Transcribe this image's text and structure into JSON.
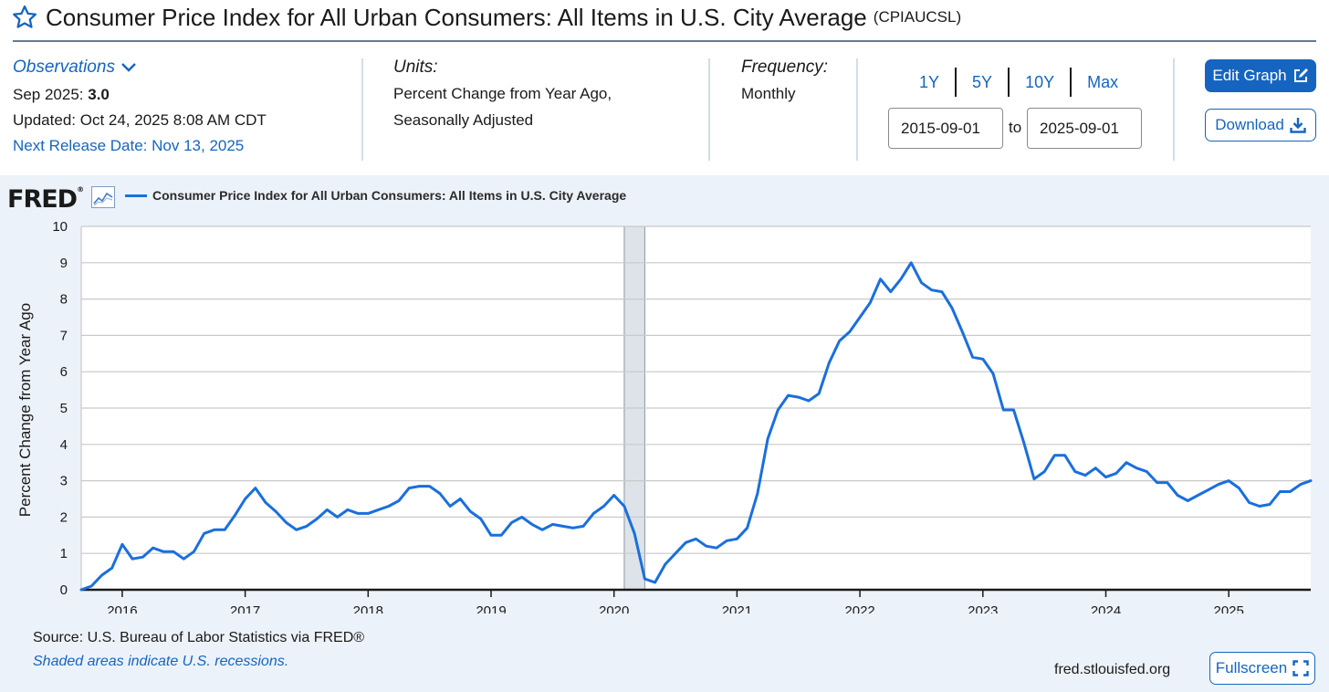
{
  "header": {
    "title": "Consumer Price Index for All Urban Consumers: All Items in U.S. City Average",
    "series_code": "(CPIAUCSL)"
  },
  "observations": {
    "label": "Observations",
    "period": "Sep 2025:",
    "value": "3.0",
    "updated": "Updated: Oct 24, 2025 8:08 AM CDT",
    "next_release": "Next Release Date: Nov 13, 2025"
  },
  "units": {
    "label": "Units:",
    "line1": "Percent Change from Year Ago,",
    "line2": "Seasonally Adjusted"
  },
  "frequency": {
    "label": "Frequency:",
    "value": "Monthly"
  },
  "range_buttons": [
    "1Y",
    "5Y",
    "10Y",
    "Max"
  ],
  "date_range": {
    "start": "2015-09-01",
    "to_label": "to",
    "end": "2025-09-01"
  },
  "actions": {
    "edit_graph": "Edit Graph",
    "download": "Download",
    "fullscreen": "Fullscreen"
  },
  "graph": {
    "logo": "FRED",
    "legend_label": "Consumer Price Index for All Urban Consumers: All Items in U.S. City Average",
    "source": "Source: U.S. Bureau of Labor Statistics via FRED®",
    "recession_note": "Shaded areas indicate U.S. recessions.",
    "site": "fred.stlouisfed.org"
  },
  "colors": {
    "accent": "#1565c0",
    "series_line": "#1a6fdc",
    "recession_shade": "#dde3e9",
    "panel_bg": "#ecf2f9"
  },
  "chart_data": {
    "type": "line",
    "title": "Consumer Price Index for All Urban Consumers: All Items in U.S. City Average",
    "xlabel": "",
    "ylabel": "Percent Change from Year Ago",
    "ylim": [
      0,
      10
    ],
    "y_ticks": [
      0,
      1,
      2,
      3,
      4,
      5,
      6,
      7,
      8,
      9,
      10
    ],
    "x_start": "2015-09",
    "x_end": "2025-09",
    "x_tick_labels": [
      "2016",
      "2017",
      "2018",
      "2019",
      "2020",
      "2021",
      "2022",
      "2023",
      "2024",
      "2025"
    ],
    "grid": true,
    "recessions": [
      {
        "start": "2020-02",
        "end": "2020-04"
      }
    ],
    "series": [
      {
        "name": "Consumer Price Index for All Urban Consumers: All Items in U.S. City Average",
        "x": [
          "2015-09",
          "2015-10",
          "2015-11",
          "2015-12",
          "2016-01",
          "2016-02",
          "2016-03",
          "2016-04",
          "2016-05",
          "2016-06",
          "2016-07",
          "2016-08",
          "2016-09",
          "2016-10",
          "2016-11",
          "2016-12",
          "2017-01",
          "2017-02",
          "2017-03",
          "2017-04",
          "2017-05",
          "2017-06",
          "2017-07",
          "2017-08",
          "2017-09",
          "2017-10",
          "2017-11",
          "2017-12",
          "2018-01",
          "2018-02",
          "2018-03",
          "2018-04",
          "2018-05",
          "2018-06",
          "2018-07",
          "2018-08",
          "2018-09",
          "2018-10",
          "2018-11",
          "2018-12",
          "2019-01",
          "2019-02",
          "2019-03",
          "2019-04",
          "2019-05",
          "2019-06",
          "2019-07",
          "2019-08",
          "2019-09",
          "2019-10",
          "2019-11",
          "2019-12",
          "2020-01",
          "2020-02",
          "2020-03",
          "2020-04",
          "2020-05",
          "2020-06",
          "2020-07",
          "2020-08",
          "2020-09",
          "2020-10",
          "2020-11",
          "2020-12",
          "2021-01",
          "2021-02",
          "2021-03",
          "2021-04",
          "2021-05",
          "2021-06",
          "2021-07",
          "2021-08",
          "2021-09",
          "2021-10",
          "2021-11",
          "2021-12",
          "2022-01",
          "2022-02",
          "2022-03",
          "2022-04",
          "2022-05",
          "2022-06",
          "2022-07",
          "2022-08",
          "2022-09",
          "2022-10",
          "2022-11",
          "2022-12",
          "2023-01",
          "2023-02",
          "2023-03",
          "2023-04",
          "2023-05",
          "2023-06",
          "2023-07",
          "2023-08",
          "2023-09",
          "2023-10",
          "2023-11",
          "2023-12",
          "2024-01",
          "2024-02",
          "2024-03",
          "2024-04",
          "2024-05",
          "2024-06",
          "2024-07",
          "2024-08",
          "2024-09",
          "2024-10",
          "2024-11",
          "2024-12",
          "2025-01",
          "2025-02",
          "2025-03",
          "2025-04",
          "2025-05",
          "2025-06",
          "2025-07",
          "2025-08",
          "2025-09"
        ],
        "values": [
          0.0,
          0.1,
          0.4,
          0.6,
          1.25,
          0.85,
          0.9,
          1.15,
          1.05,
          1.05,
          0.85,
          1.05,
          1.55,
          1.65,
          1.65,
          2.05,
          2.5,
          2.8,
          2.4,
          2.15,
          1.85,
          1.65,
          1.75,
          1.95,
          2.2,
          2.0,
          2.2,
          2.1,
          2.1,
          2.2,
          2.3,
          2.45,
          2.8,
          2.85,
          2.85,
          2.65,
          2.3,
          2.5,
          2.15,
          1.95,
          1.5,
          1.5,
          1.85,
          2.0,
          1.8,
          1.65,
          1.8,
          1.75,
          1.7,
          1.75,
          2.1,
          2.3,
          2.6,
          2.3,
          1.55,
          0.3,
          0.2,
          0.7,
          1.0,
          1.3,
          1.4,
          1.2,
          1.15,
          1.35,
          1.4,
          1.7,
          2.65,
          4.15,
          4.95,
          5.35,
          5.3,
          5.2,
          5.4,
          6.25,
          6.85,
          7.1,
          7.5,
          7.9,
          8.55,
          8.2,
          8.55,
          9.0,
          8.45,
          8.25,
          8.2,
          7.75,
          7.1,
          6.4,
          6.35,
          5.95,
          4.95,
          4.95,
          4.05,
          3.05,
          3.25,
          3.7,
          3.7,
          3.25,
          3.15,
          3.35,
          3.1,
          3.2,
          3.5,
          3.35,
          3.25,
          2.95,
          2.95,
          2.6,
          2.45,
          2.6,
          2.75,
          2.9,
          3.0,
          2.8,
          2.4,
          2.3,
          2.35,
          2.7,
          2.7,
          2.9,
          3.0
        ]
      }
    ]
  }
}
